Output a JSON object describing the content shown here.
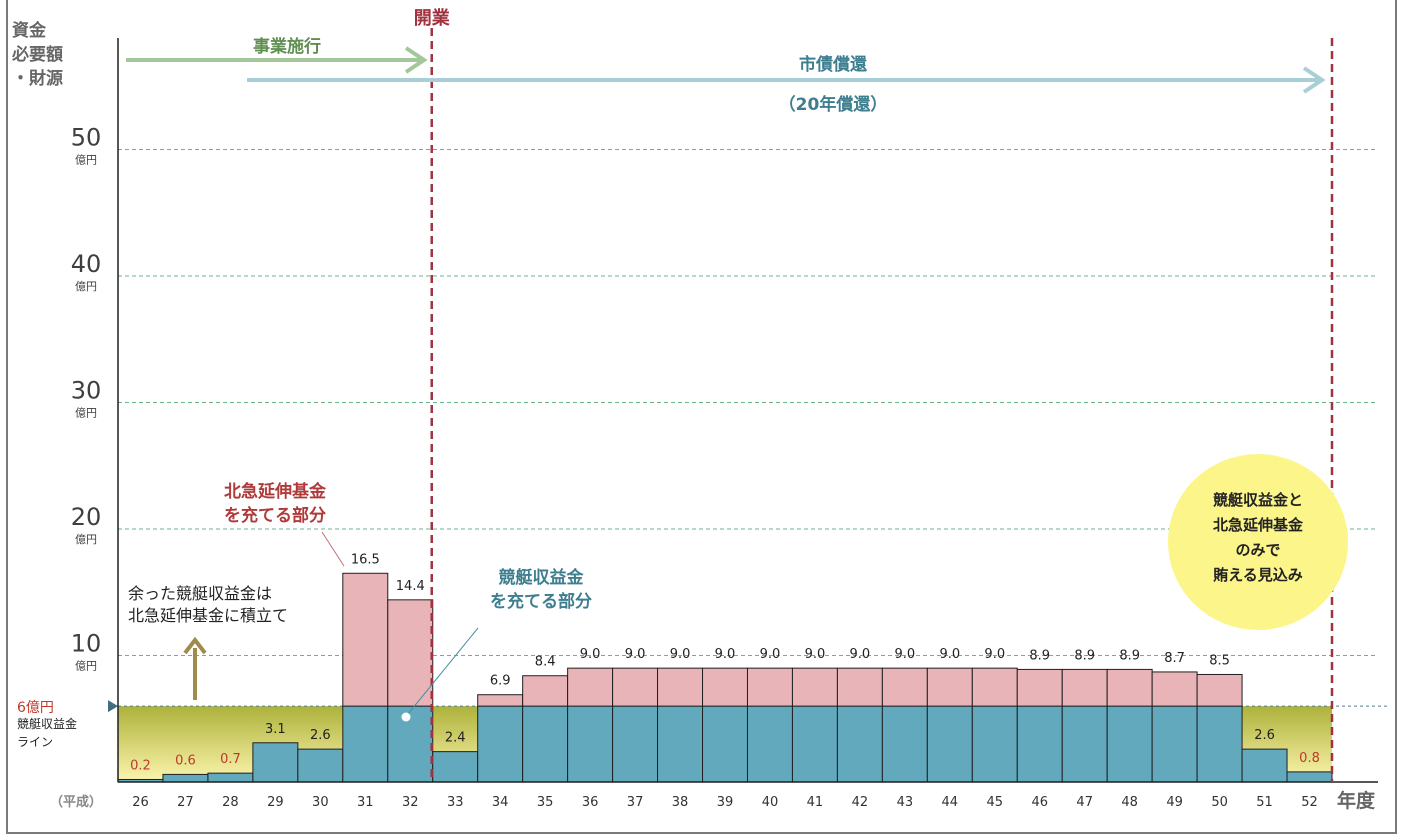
{
  "chart_data": {
    "type": "bar",
    "title": "",
    "ylabel": "資金必要額・財源",
    "y_label_lines": [
      "資金",
      "必要額",
      "・財源"
    ],
    "xlabel": "年度",
    "x_prefix": "（平成）",
    "ylim": [
      0,
      55
    ],
    "y_ticks": [
      10,
      20,
      30,
      40,
      50
    ],
    "y_tick_unit": "億円",
    "grid": true,
    "categories": [
      "26",
      "27",
      "28",
      "29",
      "30",
      "31",
      "32",
      "33",
      "34",
      "35",
      "36",
      "37",
      "38",
      "39",
      "40",
      "41",
      "42",
      "43",
      "44",
      "45",
      "46",
      "47",
      "48",
      "49",
      "50",
      "51",
      "52"
    ],
    "values": [
      0.2,
      0.6,
      0.7,
      3.1,
      2.6,
      16.5,
      14.4,
      2.4,
      6.9,
      8.4,
      9.0,
      9.0,
      9.0,
      9.0,
      9.0,
      9.0,
      9.0,
      9.0,
      9.0,
      9.0,
      8.9,
      8.9,
      8.9,
      8.7,
      8.5,
      2.6,
      0.8
    ],
    "data_labels": [
      "0.2",
      "0.6",
      "0.7",
      "3.1",
      "2.6",
      "16.5",
      "14.4",
      "2.4",
      "6.9",
      "8.4",
      "9.0",
      "9.0",
      "9.0",
      "9.0",
      "9.0",
      "9.0",
      "9.0",
      "9.0",
      "9.0",
      "9.0",
      "8.9",
      "8.9",
      "8.9",
      "8.7",
      "8.5",
      "2.6",
      "0.8"
    ],
    "threshold": {
      "value": 6,
      "label": "6億円",
      "band_label_lines": [
        "競艇収益金",
        "ライン"
      ]
    },
    "colors": {
      "blue": "#62a9bd",
      "pink": "#e8b4b8",
      "band_top": "#aeb13b",
      "band_bottom": "#fcf6ae",
      "grid": "#6ab48a",
      "red_label": "#c0392b",
      "divider": "#a0333f",
      "green_arrow": "#a3c79a",
      "teal_arrow": "#a9cfd6",
      "circle": "#fbf58a",
      "upward_arrow": "#9f8b4c",
      "teal_text": "#3d7e8f"
    },
    "annotations": {
      "kaigyo": "開業",
      "jigyo": "事業施行",
      "shisai": "市債償還",
      "shisai_sub": "（20年償還）",
      "hokkyu_lines": [
        "北急延伸基金",
        "を充てる部分"
      ],
      "kyotei_lines": [
        "競艇収益金",
        "を充てる部分"
      ],
      "surplus_lines": [
        "余った競艇収益金は",
        "北急延伸基金に積立て"
      ],
      "circle_lines": [
        "競艇収益金と",
        "北急延伸基金",
        "のみで",
        "賄える見込み"
      ]
    }
  }
}
